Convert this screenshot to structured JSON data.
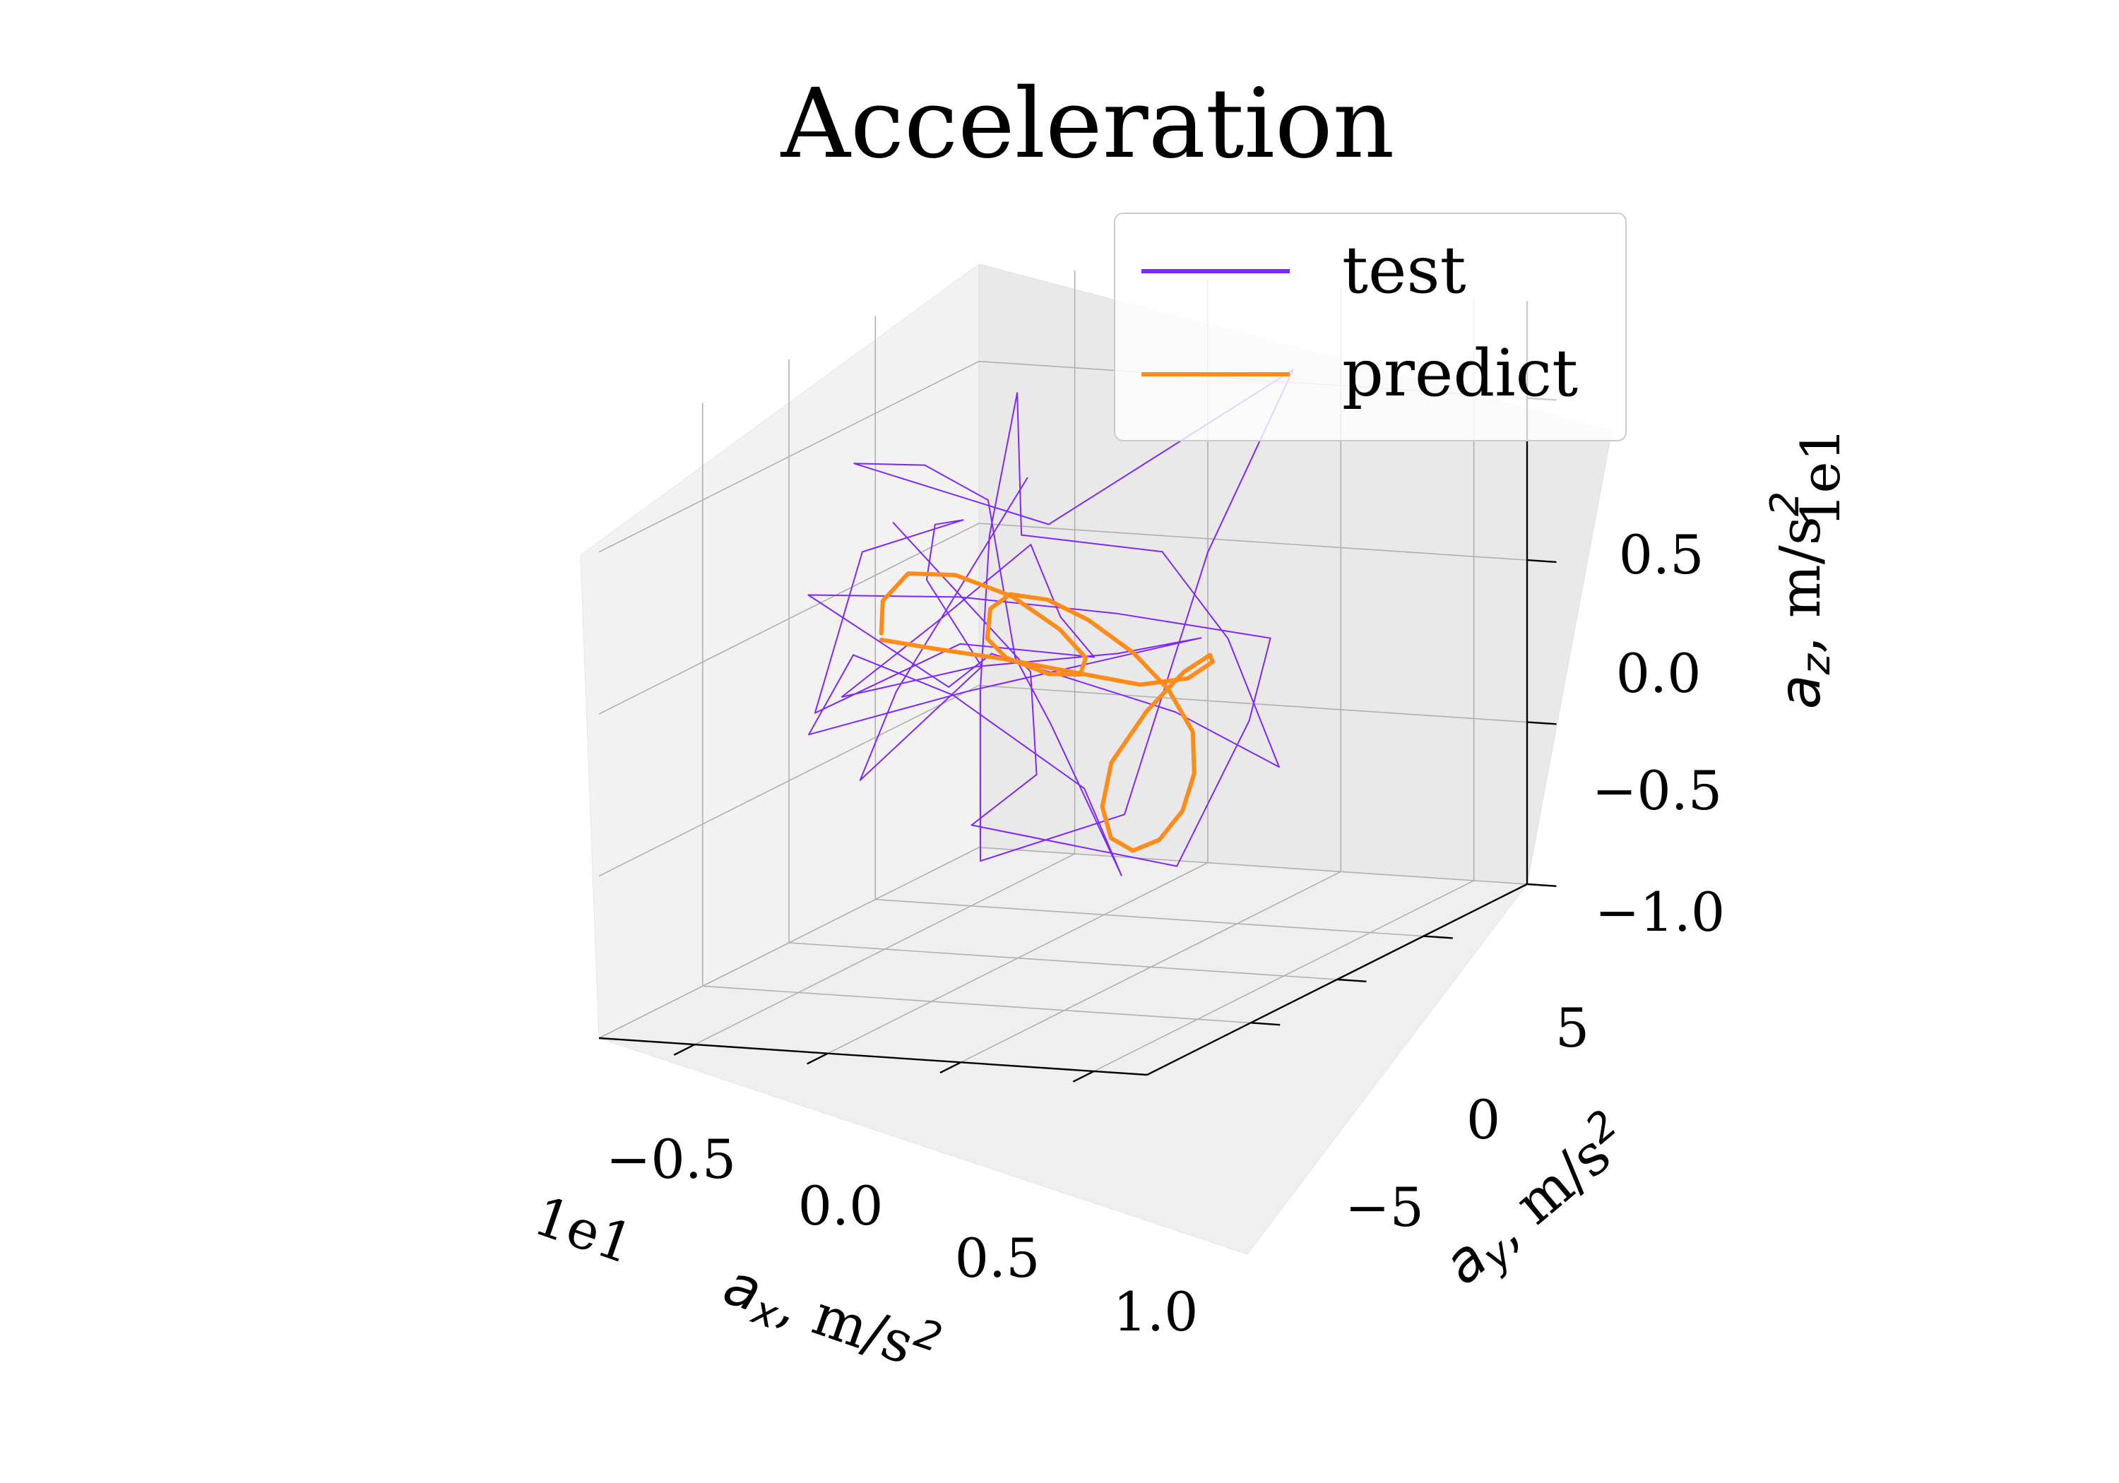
{
  "chart_data": {
    "type": "line",
    "projection": "3d",
    "title": "Acceleration",
    "xlabel_main": "a",
    "xlabel_sub": "x",
    "xlabel_unit": ", m/s",
    "xlabel_sup": "2",
    "ylabel_main": "a",
    "ylabel_sub": "y",
    "ylabel_unit": ", m/s",
    "ylabel_sup": "2",
    "zlabel_main": "a",
    "zlabel_sub": "z",
    "zlabel_unit": ", m/s",
    "zlabel_sup": "2",
    "x_offset": "1e1",
    "z_offset": "1e1",
    "x_ticks": [
      -0.5,
      0.0,
      0.5,
      1.0
    ],
    "x_tick_labels": [
      "−0.5",
      "0.0",
      "0.5",
      "1.0"
    ],
    "y_ticks": [
      -5,
      0,
      5
    ],
    "y_tick_labels": [
      "−5",
      "0",
      "5"
    ],
    "z_ticks": [
      -1.0,
      -0.5,
      0.0,
      0.5
    ],
    "z_tick_labels": [
      "−1.0",
      "−0.5",
      "0.0",
      "0.5"
    ],
    "xlim": [
      -8.6,
      12.0
    ],
    "ylim": [
      -11.0,
      11.0
    ],
    "zlim": [
      -10.0,
      8.0
    ],
    "grid": true,
    "legend_position": "top-right",
    "series": [
      {
        "name": "test",
        "color": "#7f27ff",
        "width": 2,
        "x": [
          -10.2,
          -0.3,
          2.2,
          0.6,
          5.2,
          7.4,
          8.0,
          1.7,
          -4.6,
          -10.6,
          -5.0,
          -3.0,
          5.0,
          10.6,
          9.2,
          7.7,
          1.5,
          1.6,
          -2.3,
          -4.2,
          -5.3,
          -0.6,
          2.4,
          5.8,
          -2.8,
          -9.2,
          -5.9,
          -1.7,
          1.0,
          3.0,
          7.4,
          6.2,
          0.8,
          -3.0,
          -5.0,
          0.6,
          8.9,
          4.6,
          -3.5,
          -9.6,
          -5.3,
          -1.2,
          0.5,
          1.7,
          -1.9,
          -6.0,
          -6.3,
          -4.0,
          -7.2,
          -8.1,
          -5.9,
          -8.2,
          -5.8,
          -2.5
        ],
        "y": [
          8.5,
          1.2,
          -2.3,
          -3.6,
          1.2,
          2.0,
          2.3,
          3.1,
          3.7,
          4.2,
          3.7,
          3.1,
          1.4,
          -1.2,
          -2.0,
          -3.5,
          -2.1,
          -2.5,
          1.9,
          4.3,
          6.0,
          7.1,
          7.3,
          7.0,
          6.1,
          4.7,
          3.7,
          0.9,
          -1.7,
          -2.7,
          -5.4,
          -5.7,
          -5.0,
          -4.9,
          -4.4,
          -3.9,
          -3.1,
          -1.3,
          3.0,
          4.6,
          3.8,
          2.6,
          1.7,
          1.8,
          -0.4,
          -2.5,
          0.7,
          3.0,
          6.3,
          7.2,
          7.0,
          3.5,
          1.9,
          4.4
        ],
        "z": [
          0.6,
          -1.5,
          -3.6,
          -4.9,
          -7.2,
          -2.8,
          -0.3,
          -0.1,
          -0.1,
          -0.5,
          -2.9,
          -1.6,
          -2.5,
          -3.2,
          0.9,
          3.9,
          3.7,
          8.2,
          2.4,
          -3.1,
          -8.9,
          -7.5,
          0.7,
          6.6,
          1.6,
          3.5,
          3.9,
          3.8,
          -0.2,
          -1.9,
          -5.6,
          -2.9,
          -0.5,
          0.5,
          -2.2,
          -0.7,
          1.2,
          0.0,
          -2.0,
          -3.7,
          -0.8,
          2.0,
          0.1,
          -1.1,
          -0.3,
          -2.1,
          2.0,
          2.5,
          1.3,
          -0.7,
          -3.2,
          -5.9,
          -2.6,
          3.5
        ]
      },
      {
        "name": "predict",
        "color": "#ff8c1a",
        "width": 6,
        "x": [
          -5.0,
          -4.1,
          -2.5,
          -0.4,
          1.6,
          3.0,
          3.4,
          2.6,
          1.1,
          -0.3,
          -0.5,
          0.2,
          1.4,
          3.0,
          4.4,
          5.7,
          6.5,
          6.9,
          6.5,
          5.8,
          4.8,
          4.0,
          3.5,
          3.5,
          4.1,
          5.3,
          6.3,
          6.9,
          6.8,
          6.0,
          4.4,
          2.1,
          -0.5,
          -3.0,
          -5.0
        ],
        "y": [
          -0.2,
          -1.5,
          -2.5,
          -3.0,
          -2.8,
          -2.2,
          -1.3,
          -0.4,
          0.1,
          -0.2,
          -1.0,
          -1.9,
          -2.6,
          -2.9,
          -2.7,
          -2.1,
          -1.3,
          -0.5,
          0.2,
          0.6,
          0.8,
          0.5,
          0.0,
          -0.5,
          -0.9,
          -0.7,
          -0.1,
          0.5,
          0.8,
          0.6,
          0.3,
          0.1,
          0.0,
          -0.1,
          -0.2
        ],
        "z": [
          -0.2,
          1.2,
          2.4,
          2.6,
          2.0,
          0.9,
          -0.2,
          -1.0,
          -1.2,
          -0.7,
          0.1,
          1.3,
          2.0,
          2.0,
          1.4,
          0.3,
          -1.0,
          -2.5,
          -4.0,
          -5.3,
          -6.3,
          -6.6,
          -6.1,
          -5.0,
          -3.5,
          -1.9,
          -0.8,
          -0.4,
          -0.7,
          -1.2,
          -1.4,
          -1.1,
          -0.8,
          -0.6,
          -0.4
        ]
      }
    ]
  }
}
